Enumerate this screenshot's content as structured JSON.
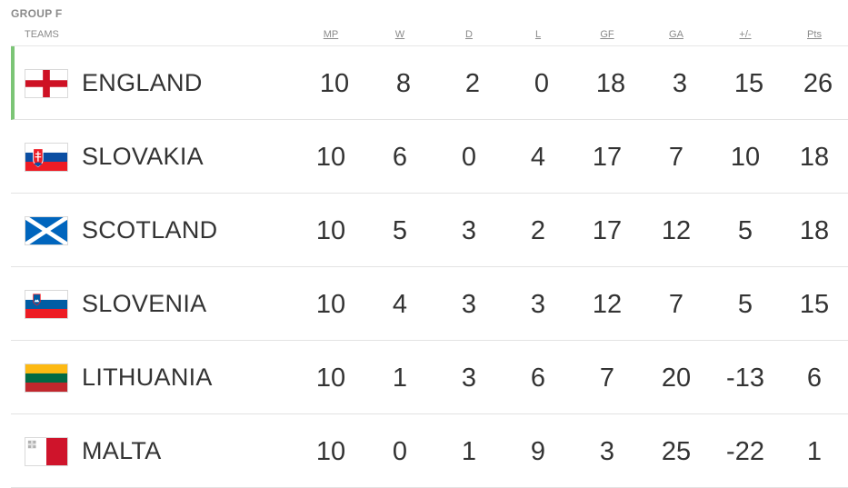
{
  "group_title": "GROUP F",
  "header": {
    "teams": "TEAMS",
    "columns": [
      "MP",
      "W",
      "D",
      "L",
      "GF",
      "GA",
      "+/-",
      "Pts"
    ]
  },
  "accent_color": "#7cc576",
  "rows": [
    {
      "team": "ENGLAND",
      "flag": "england-flag-icon",
      "qualified": true,
      "stats": [
        "10",
        "8",
        "2",
        "0",
        "18",
        "3",
        "15",
        "26"
      ]
    },
    {
      "team": "SLOVAKIA",
      "flag": "slovakia-flag-icon",
      "qualified": false,
      "stats": [
        "10",
        "6",
        "0",
        "4",
        "17",
        "7",
        "10",
        "18"
      ]
    },
    {
      "team": "SCOTLAND",
      "flag": "scotland-flag-icon",
      "qualified": false,
      "stats": [
        "10",
        "5",
        "3",
        "2",
        "17",
        "12",
        "5",
        "18"
      ]
    },
    {
      "team": "SLOVENIA",
      "flag": "slovenia-flag-icon",
      "qualified": false,
      "stats": [
        "10",
        "4",
        "3",
        "3",
        "12",
        "7",
        "5",
        "15"
      ]
    },
    {
      "team": "LITHUANIA",
      "flag": "lithuania-flag-icon",
      "qualified": false,
      "stats": [
        "10",
        "1",
        "3",
        "6",
        "7",
        "20",
        "-13",
        "6"
      ]
    },
    {
      "team": "MALTA",
      "flag": "malta-flag-icon",
      "qualified": false,
      "stats": [
        "10",
        "0",
        "1",
        "9",
        "3",
        "25",
        "-22",
        "1"
      ]
    }
  ]
}
